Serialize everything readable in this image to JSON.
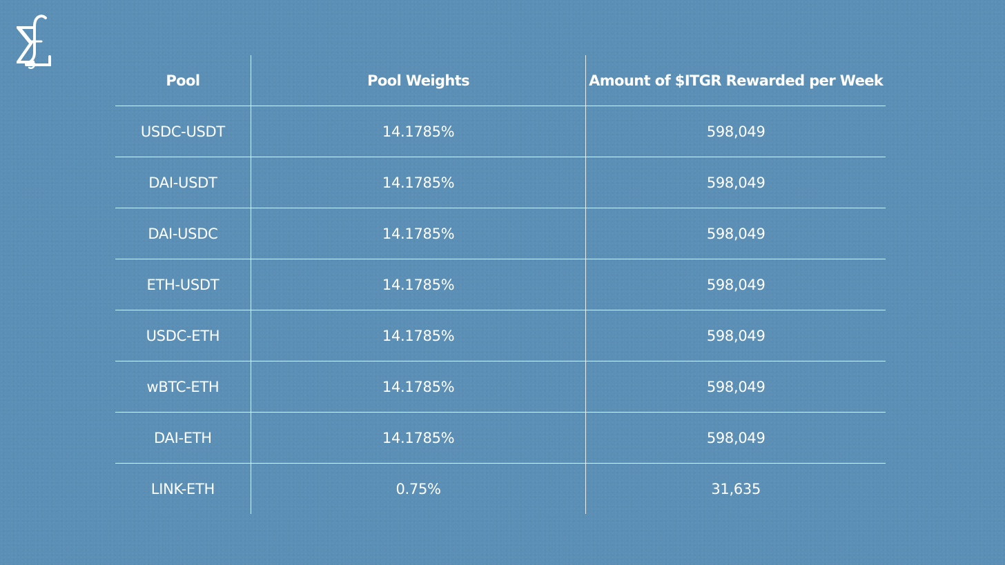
{
  "table": {
    "headers": {
      "pool": "Pool",
      "weights": "Pool Weights",
      "rewards": "Amount of $ITGR Rewarded per Week"
    },
    "rows": [
      {
        "pool": "USDC-USDT",
        "weight": "14.1785%",
        "reward": "598,049"
      },
      {
        "pool": "DAI-USDT",
        "weight": "14.1785%",
        "reward": "598,049"
      },
      {
        "pool": "DAI-USDC",
        "weight": "14.1785%",
        "reward": "598,049"
      },
      {
        "pool": "ETH-USDT",
        "weight": "14.1785%",
        "reward": "598,049"
      },
      {
        "pool": "USDC-ETH",
        "weight": "14.1785%",
        "reward": "598,049"
      },
      {
        "pool": "wBTC-ETH",
        "weight": "14.1785%",
        "reward": "598,049"
      },
      {
        "pool": "DAI-ETH",
        "weight": "14.1785%",
        "reward": "598,049"
      },
      {
        "pool": "LINK-ETH",
        "weight": "0.75%",
        "reward": "31,635"
      }
    ]
  },
  "colors": {
    "background": "#5b8fb5",
    "text": "#ffffff"
  }
}
